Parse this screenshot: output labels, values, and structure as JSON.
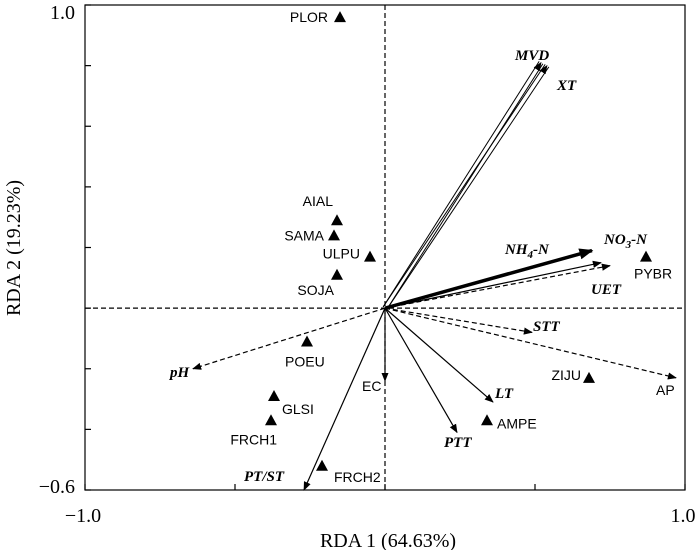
{
  "chart_data": {
    "type": "scatter",
    "xlabel": "RDA 1 (64.63%)",
    "ylabel": "RDA 2 (19.23%)",
    "xlim": [
      -1.0,
      1.0
    ],
    "ylim": [
      -0.6,
      1.0
    ],
    "x_ticks": [
      "-1.0",
      "1.0"
    ],
    "y_ticks": [
      "1.0",
      "-0.6"
    ],
    "zero_lines": "dashed at x=0 and y=0",
    "species": [
      {
        "name": "PLOR",
        "x": -0.15,
        "y": 0.96
      },
      {
        "name": "AIAL",
        "x": -0.16,
        "y": 0.29
      },
      {
        "name": "SAMA",
        "x": -0.17,
        "y": 0.24
      },
      {
        "name": "ULPU",
        "x": -0.05,
        "y": 0.17
      },
      {
        "name": "SOJA",
        "x": -0.16,
        "y": 0.11
      },
      {
        "name": "PYBR",
        "x": 0.87,
        "y": 0.17
      },
      {
        "name": "POEU",
        "x": -0.26,
        "y": -0.11
      },
      {
        "name": "GLSI",
        "x": -0.37,
        "y": -0.29
      },
      {
        "name": "FRCH1",
        "x": -0.38,
        "y": -0.37
      },
      {
        "name": "FRCH2",
        "x": -0.21,
        "y": -0.52
      },
      {
        "name": "ZIJU",
        "x": 0.68,
        "y": -0.23
      },
      {
        "name": "AMPE",
        "x": 0.34,
        "y": -0.37
      }
    ],
    "variables": [
      {
        "name": "MVD",
        "x": 0.52,
        "y": 0.81,
        "style": "double"
      },
      {
        "name": "XT",
        "x": 0.54,
        "y": 0.8,
        "style": "double"
      },
      {
        "name": "NH4-N",
        "x": 0.69,
        "y": 0.19,
        "style": "bold"
      },
      {
        "name": "NO3-N",
        "x": 0.72,
        "y": 0.15,
        "style": "solid"
      },
      {
        "name": "UET",
        "x": 0.75,
        "y": 0.14,
        "style": "dashed"
      },
      {
        "name": "STT",
        "x": 0.49,
        "y": -0.08,
        "style": "dashed"
      },
      {
        "name": "AP",
        "x": 0.97,
        "y": -0.23,
        "style": "dashed"
      },
      {
        "name": "LT",
        "x": 0.36,
        "y": -0.31,
        "style": "solid"
      },
      {
        "name": "PTT",
        "x": 0.24,
        "y": -0.41,
        "style": "solid"
      },
      {
        "name": "EC",
        "x": 0.0,
        "y": -0.24,
        "style": "solid"
      },
      {
        "name": "PT/ST",
        "x": -0.27,
        "y": -0.6,
        "style": "solid"
      },
      {
        "name": "pH",
        "x": -0.64,
        "y": -0.2,
        "style": "dashed"
      }
    ]
  },
  "labels": {
    "y_axis_title": "RDA 2 (19.23%)",
    "x_axis_title": "RDA 1 (64.63%)",
    "x_tick_left": "−1.0",
    "x_tick_right": "1.0",
    "y_tick_top": "1.0",
    "y_tick_bottom": "−0.6",
    "env": {
      "MVD": "MVD",
      "XT": "XT",
      "NH4_main": "NH",
      "NH4_sub": "4",
      "NH4_suffix": "-N",
      "NO3_main": "NO",
      "NO3_sub": "3",
      "NO3_suffix": "-N",
      "UET": "UET",
      "STT": "STT",
      "AP": "AP",
      "LT": "LT",
      "PTT": "PTT",
      "EC": "EC",
      "PTST": "PT/ST",
      "pH": "pH"
    }
  }
}
